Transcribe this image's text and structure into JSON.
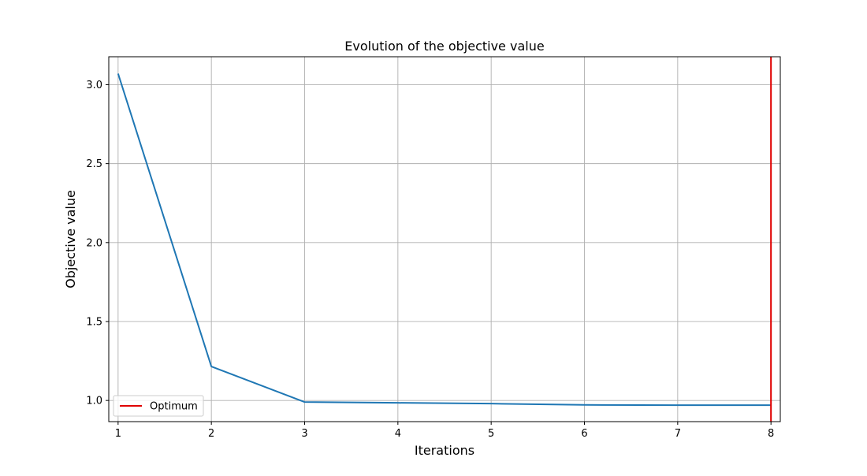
{
  "chart_data": {
    "type": "line",
    "title": "Evolution of the objective value",
    "xlabel": "Iterations",
    "ylabel": "Objective value",
    "x": [
      1,
      2,
      3,
      4,
      5,
      6,
      7,
      8
    ],
    "series": [
      {
        "values": [
          3.07,
          1.215,
          0.99,
          0.985,
          0.98,
          0.972,
          0.97,
          0.97
        ],
        "color": "#1f77b4"
      }
    ],
    "reference_lines": [
      {
        "orientation": "vertical",
        "x": 8,
        "name": "Optimum",
        "color": "#e00000"
      }
    ],
    "xlim": [
      0.9,
      8.1
    ],
    "ylim": [
      0.866,
      3.177
    ],
    "xticks": [
      1,
      2,
      3,
      4,
      5,
      6,
      7,
      8
    ],
    "yticks": [
      1.0,
      1.5,
      2.0,
      2.5,
      3.0
    ],
    "xtick_labels": [
      "1",
      "2",
      "3",
      "4",
      "5",
      "6",
      "7",
      "8"
    ],
    "ytick_labels": [
      "1.0",
      "1.5",
      "2.0",
      "2.5",
      "3.0"
    ],
    "grid": true,
    "legend": {
      "placement": "lower-left",
      "entries": [
        {
          "label": "Optimum",
          "color": "#e00000"
        }
      ]
    }
  }
}
